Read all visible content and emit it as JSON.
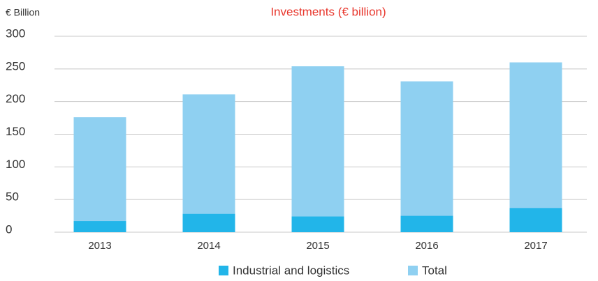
{
  "chart_data": {
    "type": "bar",
    "title": "Investments (€ billion)",
    "y_label": "€ Billion",
    "categories": [
      "2013",
      "2014",
      "2015",
      "2016",
      "2017"
    ],
    "series": [
      {
        "name": "Total",
        "color": "#8fd0f1",
        "values": [
          176,
          211,
          254,
          231,
          260
        ]
      },
      {
        "name": "Industrial and logistics",
        "color": "#22b5e9",
        "values": [
          17,
          28,
          24,
          25,
          37
        ]
      }
    ],
    "overlap": true,
    "ylim": [
      0,
      300
    ],
    "yticks": [
      0,
      50,
      100,
      150,
      200,
      250,
      300
    ],
    "grid": true
  }
}
